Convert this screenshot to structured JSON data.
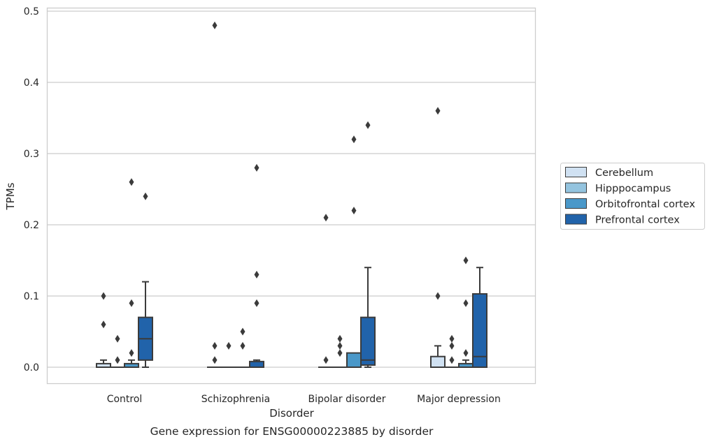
{
  "chart_data": {
    "type": "box",
    "title": "",
    "caption": "Gene expression for ENSG00000223885 by disorder",
    "xlabel": "Disorder",
    "ylabel": "TPMs",
    "ylim": [
      -0.023,
      0.505
    ],
    "yticks": [
      0.0,
      0.1,
      0.2,
      0.3,
      0.4,
      0.5
    ],
    "ytick_labels": [
      "0.0",
      "0.1",
      "0.2",
      "0.3",
      "0.4",
      "0.5"
    ],
    "grid": "horizontal",
    "legend_position": "right",
    "categories": [
      "Control",
      "Schizophrenia",
      "Bipolar disorder",
      "Major depression"
    ],
    "series": [
      {
        "name": "Cerebellum",
        "color": "#d0e1f2",
        "boxes": [
          {
            "q1": 0.0,
            "median": 0.0,
            "q3": 0.005,
            "whisker_low": 0.0,
            "whisker_high": 0.01,
            "outliers": [
              0.06,
              0.1
            ]
          },
          {
            "q1": 0.0,
            "median": 0.0,
            "q3": 0.0,
            "whisker_low": 0.0,
            "whisker_high": 0.0,
            "outliers": [
              0.01,
              0.03,
              0.48
            ]
          },
          {
            "q1": 0.0,
            "median": 0.0,
            "q3": 0.0,
            "whisker_low": 0.0,
            "whisker_high": 0.0,
            "outliers": [
              0.01,
              0.21
            ]
          },
          {
            "q1": 0.0,
            "median": 0.0,
            "q3": 0.015,
            "whisker_low": 0.0,
            "whisker_high": 0.03,
            "outliers": [
              0.1,
              0.36
            ]
          }
        ]
      },
      {
        "name": "Hipppocampus",
        "color": "#94c4df",
        "boxes": [
          {
            "q1": 0.0,
            "median": 0.0,
            "q3": 0.0,
            "whisker_low": 0.0,
            "whisker_high": 0.0,
            "outliers": [
              0.01,
              0.04
            ]
          },
          {
            "q1": 0.0,
            "median": 0.0,
            "q3": 0.0,
            "whisker_low": 0.0,
            "whisker_high": 0.0,
            "outliers": [
              0.03
            ]
          },
          {
            "q1": 0.0,
            "median": 0.0,
            "q3": 0.0,
            "whisker_low": 0.0,
            "whisker_high": 0.0,
            "outliers": [
              0.02,
              0.03,
              0.04
            ]
          },
          {
            "q1": 0.0,
            "median": 0.0,
            "q3": 0.0,
            "whisker_low": 0.0,
            "whisker_high": 0.0,
            "outliers": [
              0.01,
              0.03,
              0.04
            ]
          }
        ]
      },
      {
        "name": "Orbitofrontal cortex",
        "color": "#4a98c9",
        "boxes": [
          {
            "q1": 0.0,
            "median": 0.0,
            "q3": 0.005,
            "whisker_low": 0.0,
            "whisker_high": 0.01,
            "outliers": [
              0.02,
              0.09,
              0.26
            ]
          },
          {
            "q1": 0.0,
            "median": 0.0,
            "q3": 0.0,
            "whisker_low": 0.0,
            "whisker_high": 0.0,
            "outliers": [
              0.03,
              0.05
            ]
          },
          {
            "q1": 0.0,
            "median": 0.0,
            "q3": 0.02,
            "whisker_low": 0.0,
            "whisker_high": 0.02,
            "outliers": [
              0.22,
              0.32
            ]
          },
          {
            "q1": 0.0,
            "median": 0.0,
            "q3": 0.005,
            "whisker_low": 0.0,
            "whisker_high": 0.01,
            "outliers": [
              0.02,
              0.09,
              0.15
            ]
          }
        ]
      },
      {
        "name": "Prefrontal cortex",
        "color": "#2163aa",
        "boxes": [
          {
            "q1": 0.01,
            "median": 0.04,
            "q3": 0.07,
            "whisker_low": 0.0,
            "whisker_high": 0.12,
            "outliers": [
              0.24
            ]
          },
          {
            "q1": 0.0,
            "median": 0.0,
            "q3": 0.008,
            "whisker_low": 0.0,
            "whisker_high": 0.01,
            "outliers": [
              0.09,
              0.13,
              0.28
            ]
          },
          {
            "q1": 0.003,
            "median": 0.01,
            "q3": 0.07,
            "whisker_low": 0.0,
            "whisker_high": 0.14,
            "outliers": [
              0.34
            ]
          },
          {
            "q1": 0.0,
            "median": 0.015,
            "q3": 0.103,
            "whisker_low": 0.0,
            "whisker_high": 0.14,
            "outliers": []
          }
        ]
      }
    ]
  }
}
